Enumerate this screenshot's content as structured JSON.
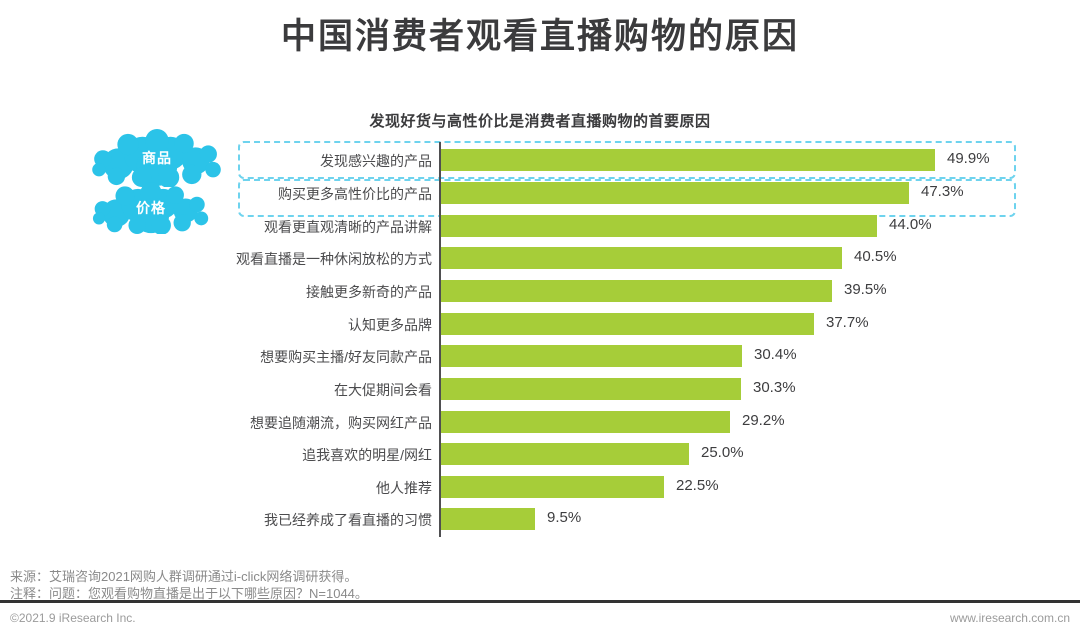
{
  "title": "中国消费者观看直播购物的原因",
  "subtitle": "发现好货与高性价比是消费者直播购物的首要原因",
  "annotations": {
    "cloud_product": "商品",
    "cloud_price": "价格"
  },
  "chart_data": {
    "type": "bar",
    "orientation": "horizontal",
    "title": "发现好货与高性价比是消费者直播购物的首要原因",
    "categories": [
      "发现感兴趣的产品",
      "购买更多高性价比的产品",
      "观看更直观清晰的产品讲解",
      "观看直播是一种休闲放松的方式",
      "接触更多新奇的产品",
      "认知更多品牌",
      "想要购买主播/好友同款产品",
      "在大促期间会看",
      "想要追随潮流，购买网红产品",
      "追我喜欢的明星/网红",
      "他人推荐",
      "我已经养成了看直播的习惯"
    ],
    "values": [
      49.9,
      47.3,
      44.0,
      40.5,
      39.5,
      37.7,
      30.4,
      30.3,
      29.2,
      25.0,
      22.5,
      9.5
    ],
    "value_labels": [
      "49.9%",
      "47.3%",
      "44.0%",
      "40.5%",
      "39.5%",
      "37.7%",
      "30.4%",
      "30.3%",
      "29.2%",
      "25.0%",
      "22.5%",
      "9.5%"
    ],
    "highlighted_rows": [
      0,
      1
    ],
    "xlim": [
      0,
      55
    ],
    "grid": false,
    "legend": false,
    "bar_color": "#a6cd39"
  },
  "colors": {
    "bar": "#a6cd39",
    "cloud": "#2bc3e8",
    "dashed_box": "#6ed3ee",
    "title_text": "#3b3b3d"
  },
  "footer": {
    "source": "来源：艾瑞咨询2021网购人群调研通过i-click网络调研获得。",
    "note": "注释：问题：您观看购物直播是出于以下哪些原因？N=1044。",
    "copyright": "©2021.9 iResearch Inc.",
    "website": "www.iresearch.com.cn"
  }
}
